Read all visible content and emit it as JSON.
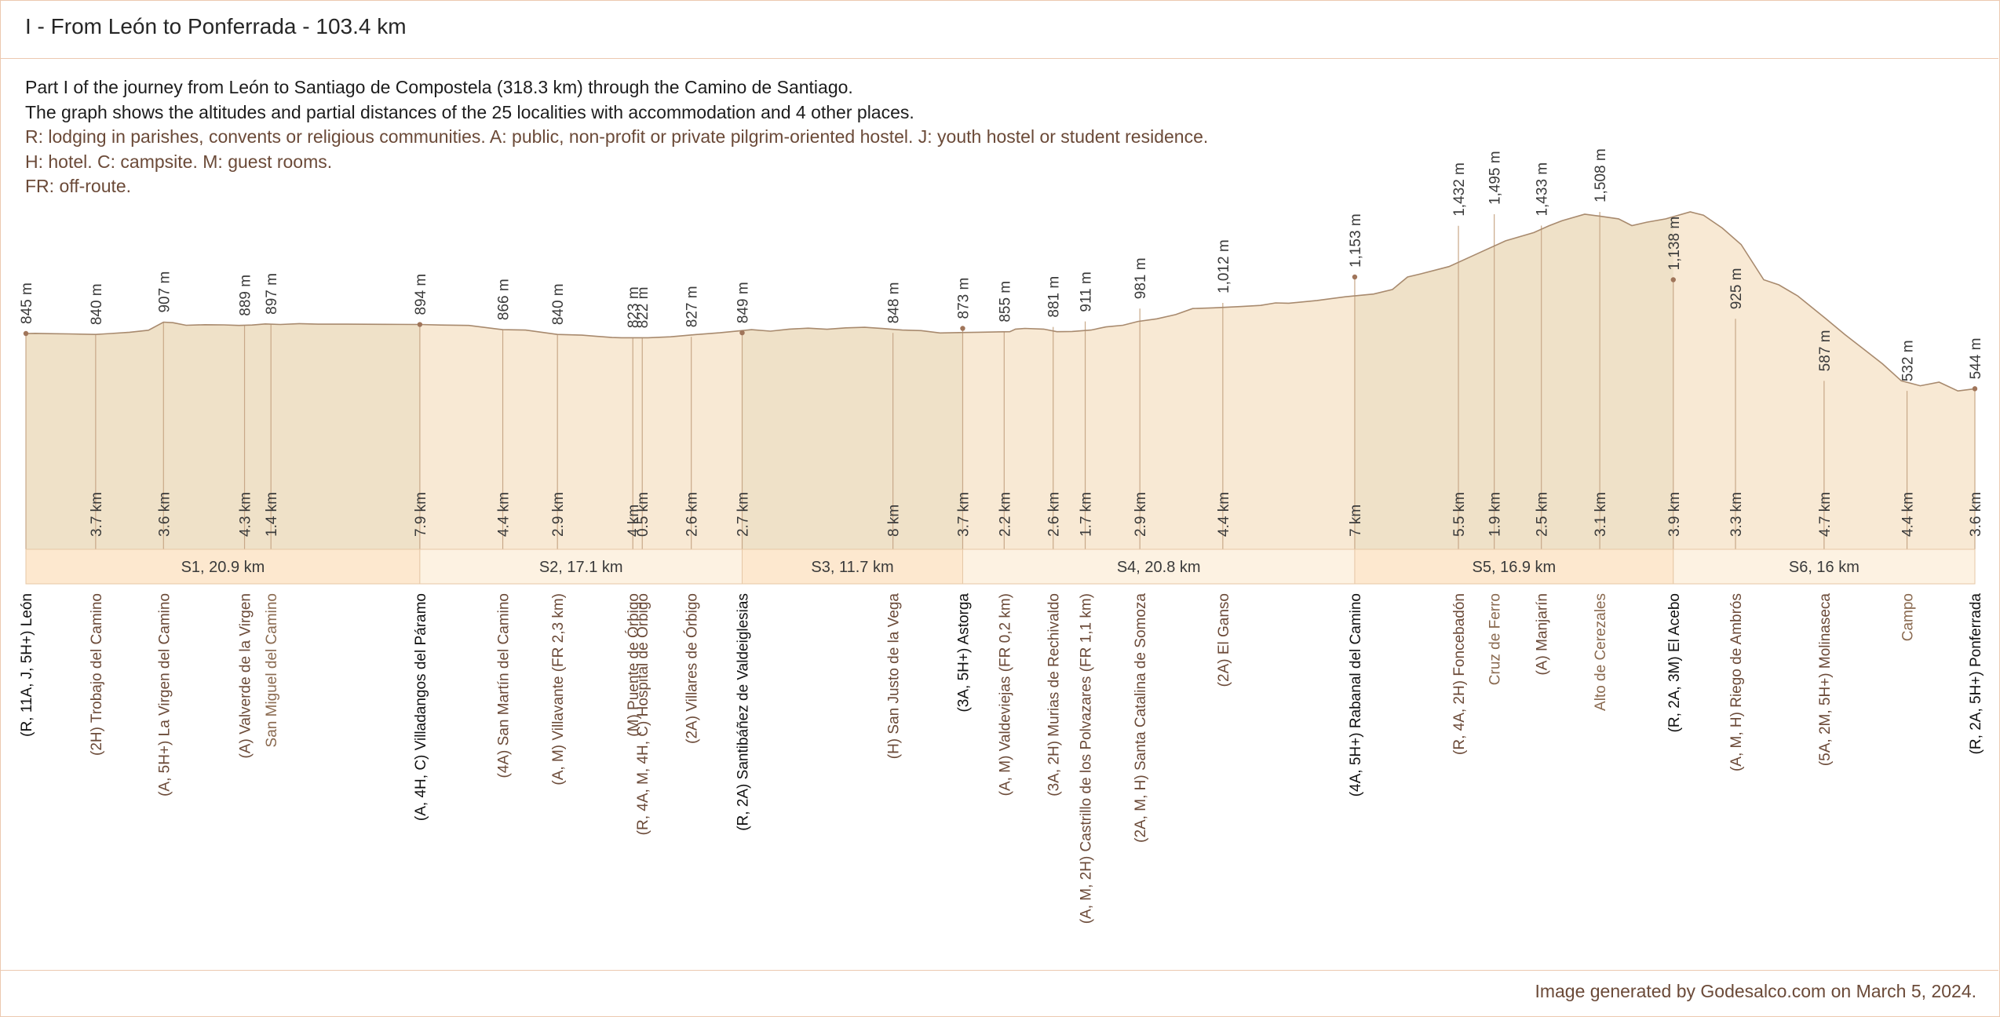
{
  "title": "I - From León to Ponferrada - 103.4 km",
  "description": [
    "Part I of the journey from León to Santiago de Compostela (318.3 km) through the Camino de Santiago.",
    "The graph shows the altitudes and partial distances of the 25 localities with accommodation and 4 other places.",
    "R: lodging in parishes, convents or religious communities. A: public, non-profit or private pilgrim-oriented hostel. J: youth hostel or student residence.",
    "H: hotel. C: campsite. M: guest rooms.",
    "FR: off-route."
  ],
  "footer": "Image generated by Godesalco.com on March 5, 2024.",
  "colors": {
    "area_fill": "#f8e9d4",
    "area_fill_shaded": "#efe1c8",
    "profile_line": "#a88a6e",
    "marker_line": "#c8a888",
    "marker_dot": "#a0755a",
    "stage_fill_a": "#fde8cf",
    "stage_fill_b": "#fdf2e2",
    "stage_border": "#e6c7a6",
    "label_dark": "#1d1d1d",
    "label_brown": "#6b4a38",
    "label_other": "#8a6a50"
  },
  "chart_data": {
    "type": "area",
    "xlabel": "",
    "ylabel": "",
    "total_km": 103.4,
    "elevation_profile": [
      [
        0,
        845
      ],
      [
        0.5,
        846
      ],
      [
        1.3,
        844
      ],
      [
        2.3,
        843
      ],
      [
        3.7,
        840
      ],
      [
        4.5,
        845
      ],
      [
        5.5,
        852
      ],
      [
        6.5,
        863
      ],
      [
        7.3,
        907
      ],
      [
        7.8,
        904
      ],
      [
        8.5,
        890
      ],
      [
        9.5,
        893
      ],
      [
        10.5,
        892
      ],
      [
        11.3,
        889
      ],
      [
        12.0,
        891
      ],
      [
        12.7,
        897
      ],
      [
        13.5,
        894
      ],
      [
        14.5,
        899
      ],
      [
        15.5,
        896
      ],
      [
        17.0,
        896
      ],
      [
        19.0,
        895
      ],
      [
        20.9,
        894
      ],
      [
        22.0,
        891
      ],
      [
        23.5,
        889
      ],
      [
        25.3,
        866
      ],
      [
        26.5,
        864
      ],
      [
        28.2,
        840
      ],
      [
        29.5,
        836
      ],
      [
        31.1,
        823
      ],
      [
        31.6,
        822
      ],
      [
        33.0,
        822
      ],
      [
        34.2,
        827
      ],
      [
        35.5,
        839
      ],
      [
        36.8,
        849
      ],
      [
        37.5,
        856
      ],
      [
        38.5,
        866
      ],
      [
        39.5,
        858
      ],
      [
        40.5,
        869
      ],
      [
        41.5,
        874
      ],
      [
        42.5,
        868
      ],
      [
        43.5,
        876
      ],
      [
        44.5,
        879
      ],
      [
        45.5,
        872
      ],
      [
        46.5,
        864
      ],
      [
        47.5,
        861
      ],
      [
        48.5,
        848
      ],
      [
        49.5,
        850
      ],
      [
        50.5,
        852
      ],
      [
        52.2,
        855
      ],
      [
        52.5,
        869
      ],
      [
        53.0,
        873
      ],
      [
        54.0,
        869
      ],
      [
        54.7,
        855
      ],
      [
        55.5,
        856
      ],
      [
        56.5,
        864
      ],
      [
        57.3,
        881
      ],
      [
        58.2,
        890
      ],
      [
        59.0,
        911
      ],
      [
        60.0,
        925
      ],
      [
        61.0,
        948
      ],
      [
        61.9,
        981
      ],
      [
        63.0,
        985
      ],
      [
        64.5,
        992
      ],
      [
        65.5,
        998
      ],
      [
        66.3,
        1012
      ],
      [
        67.0,
        1010
      ],
      [
        68.5,
        1025
      ],
      [
        70.0,
        1045
      ],
      [
        71.5,
        1060
      ],
      [
        72.5,
        1085
      ],
      [
        73.3,
        1153
      ],
      [
        74.0,
        1170
      ],
      [
        75.5,
        1210
      ],
      [
        77.0,
        1280
      ],
      [
        78.5,
        1350
      ],
      [
        80.0,
        1395
      ],
      [
        80.8,
        1432
      ],
      [
        81.5,
        1460
      ],
      [
        82.7,
        1495
      ],
      [
        83.5,
        1485
      ],
      [
        84.5,
        1470
      ],
      [
        85.2,
        1433
      ],
      [
        86.0,
        1452
      ],
      [
        87.0,
        1470
      ],
      [
        88.3,
        1508
      ],
      [
        89.0,
        1490
      ],
      [
        90.0,
        1420
      ],
      [
        91.0,
        1330
      ],
      [
        92.2,
        1138
      ],
      [
        93.0,
        1110
      ],
      [
        94.0,
        1050
      ],
      [
        95.5,
        925
      ],
      [
        96.5,
        840
      ],
      [
        97.5,
        760
      ],
      [
        98.5,
        680
      ],
      [
        99.5,
        587
      ],
      [
        100.5,
        560
      ],
      [
        101.5,
        580
      ],
      [
        102.5,
        532
      ],
      [
        103.4,
        544
      ]
    ],
    "points": [
      {
        "km": 0,
        "alt": 845,
        "label": "(R, 11A, J, 5H+) León",
        "partial": null,
        "kind": "major"
      },
      {
        "km": 3.7,
        "alt": 840,
        "label": "(2H) Trobajo del Camino",
        "partial": "3.7 km",
        "kind": "normal"
      },
      {
        "km": 7.3,
        "alt": 907,
        "label": "(A, 5H+) La Virgen del Camino",
        "partial": "3.6 km",
        "kind": "normal"
      },
      {
        "km": 11.6,
        "alt": 889,
        "label": "(A) Valverde de la Virgen",
        "partial": "4.3 km",
        "kind": "normal"
      },
      {
        "km": 13.0,
        "alt": 897,
        "label": "San Miguel del Camino",
        "partial": "1.4 km",
        "kind": "other"
      },
      {
        "km": 20.9,
        "alt": 894,
        "label": "(A, 4H, C) Villadangos del Páramo",
        "partial": "7.9 km",
        "kind": "major"
      },
      {
        "km": 25.3,
        "alt": 866,
        "label": "(4A) San Martín del Camino",
        "partial": "4.4 km",
        "kind": "normal"
      },
      {
        "km": 28.2,
        "alt": 840,
        "label": "(A, M) Villavante (FR 2,3 km)",
        "partial": "2.9 km",
        "kind": "normal"
      },
      {
        "km": 32.2,
        "alt": 823,
        "label": "(M) Puente de Órbigo",
        "partial": "4 km",
        "kind": "normal"
      },
      {
        "km": 32.7,
        "alt": 822,
        "label": "(R, 4A, M, 4H, C) Hospital de Órbigo",
        "partial": "0.5 km",
        "kind": "normal"
      },
      {
        "km": 35.3,
        "alt": 827,
        "label": "(2A) Villares de Órbigo",
        "partial": "2.6 km",
        "kind": "normal"
      },
      {
        "km": 38.0,
        "alt": 849,
        "label": "(R, 2A) Santibáñez de Valdeiglesias",
        "partial": "2.7 km",
        "kind": "major"
      },
      {
        "km": 46.0,
        "alt": 848,
        "label": "(H) San Justo de la Vega",
        "partial": "8 km",
        "kind": "normal"
      },
      {
        "km": 49.7,
        "alt": 873,
        "label": "(3A, 5H+) Astorga",
        "partial": "3.7 km",
        "kind": "major"
      },
      {
        "km": 51.9,
        "alt": 855,
        "label": "(A, M) Valdeviejas (FR 0,2 km)",
        "partial": "2.2 km",
        "kind": "normal"
      },
      {
        "km": 54.5,
        "alt": 881,
        "label": "(3A, 2H) Murias de Rechivaldo",
        "partial": "2.6 km",
        "kind": "normal"
      },
      {
        "km": 56.2,
        "alt": 911,
        "label": "(A, M, 2H) Castrillo de los Polvazares (FR 1,1 km)",
        "partial": "1.7 km",
        "kind": "normal"
      },
      {
        "km": 59.1,
        "alt": 981,
        "label": "(2A, M, H) Santa Catalina de Somoza",
        "partial": "2.9 km",
        "kind": "normal"
      },
      {
        "km": 63.5,
        "alt": 1012,
        "label": "(2A) El Ganso",
        "partial": "4.4 km",
        "kind": "normal"
      },
      {
        "km": 70.5,
        "alt": 1153,
        "label": "(4A, 5H+) Rabanal del Camino",
        "partial": "7 km",
        "kind": "major"
      },
      {
        "km": 76.0,
        "alt": 1432,
        "label": "(R, 4A, 2H) Foncebadón",
        "partial": "5.5 km",
        "kind": "normal"
      },
      {
        "km": 77.9,
        "alt": 1495,
        "label": "Cruz de Ferro",
        "partial": "1.9 km",
        "kind": "other"
      },
      {
        "km": 80.4,
        "alt": 1433,
        "label": "(A) Manjarín",
        "partial": "2.5 km",
        "kind": "normal"
      },
      {
        "km": 83.5,
        "alt": 1508,
        "label": "Alto de Cerezales",
        "partial": "3.1 km",
        "kind": "other"
      },
      {
        "km": 87.4,
        "alt": 1138,
        "label": "(R, 2A, 3M) El Acebo",
        "partial": "3.9 km",
        "kind": "major"
      },
      {
        "km": 90.7,
        "alt": 925,
        "label": "(A, M, H) Riego de Ambrós",
        "partial": "3.3 km",
        "kind": "normal"
      },
      {
        "km": 95.4,
        "alt": 587,
        "label": "(5A, 2M, 5H+) Molinaseca",
        "partial": "4.7 km",
        "kind": "normal"
      },
      {
        "km": 99.8,
        "alt": 532,
        "label": "Campo",
        "partial": "4.4 km",
        "kind": "other"
      },
      {
        "km": 103.4,
        "alt": 544,
        "label": "(R, 2A, 5H+) Ponferrada",
        "partial": "3.6 km",
        "kind": "major"
      }
    ],
    "stages": [
      {
        "label": "S1, 20.9 km",
        "from": 0,
        "to": 20.9
      },
      {
        "label": "S2, 17.1 km",
        "from": 20.9,
        "to": 38.0
      },
      {
        "label": "S3, 11.7 km",
        "from": 38.0,
        "to": 49.7
      },
      {
        "label": "S4, 20.8 km",
        "from": 49.7,
        "to": 70.5
      },
      {
        "label": "S5, 16.9 km",
        "from": 70.5,
        "to": 87.4
      },
      {
        "label": "S6, 16 km",
        "from": 87.4,
        "to": 103.4
      }
    ]
  }
}
